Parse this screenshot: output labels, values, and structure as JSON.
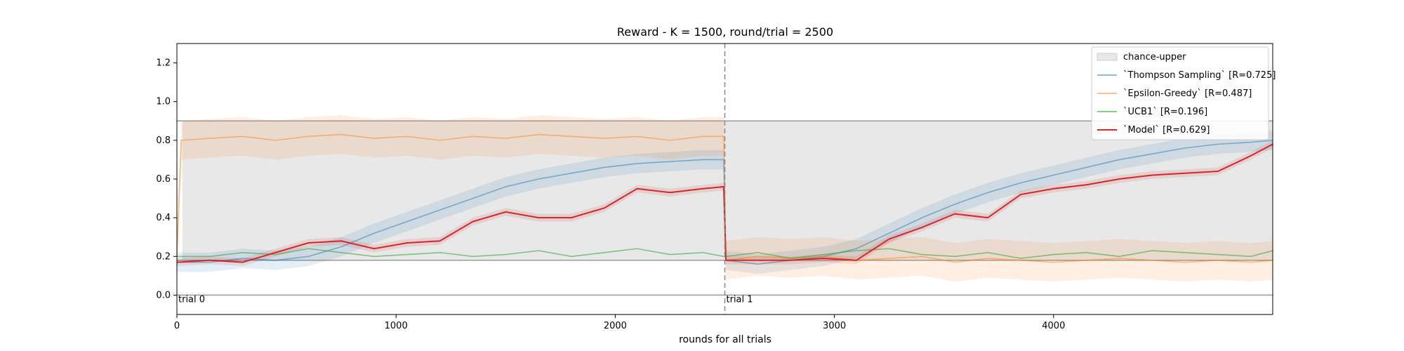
{
  "chart_data": {
    "type": "line",
    "title": "Reward - K = 1500, round/trial = 2500",
    "xlabel": "rounds for all trials",
    "ylabel": "",
    "xlim": [
      0,
      5000
    ],
    "ylim": [
      -0.1,
      1.3
    ],
    "xticks": [
      0,
      1000,
      2000,
      3000,
      4000
    ],
    "yticks": [
      0.0,
      0.2,
      0.4,
      0.6,
      0.8,
      1.0,
      1.2
    ],
    "xtick_labels": [
      "0",
      "1000",
      "2000",
      "3000",
      "4000"
    ],
    "ytick_labels": [
      "0.0",
      "0.2",
      "0.4",
      "0.6",
      "0.8",
      "1.0",
      "1.2"
    ],
    "grid": false,
    "legend_position": "top-right",
    "chance_band": {
      "label": "chance-upper",
      "lower": 0.18,
      "upper": 0.9,
      "color": "#e8e8e8"
    },
    "reference_lines": [
      0.0,
      0.18,
      0.9
    ],
    "trial_boundary_x": 2500,
    "annotations": [
      {
        "text": "trial 0",
        "x": 0,
        "y": 0.0
      },
      {
        "text": "trial 1",
        "x": 2500,
        "y": 0.0
      }
    ],
    "series": [
      {
        "name": "`Thompson Sampling` [R=0.725]",
        "color": "#1f77b4",
        "alpha": 0.5,
        "band": 0.05,
        "x": [
          0,
          150,
          300,
          450,
          600,
          750,
          900,
          1050,
          1200,
          1350,
          1500,
          1650,
          1800,
          1950,
          2100,
          2250,
          2400,
          2495,
          2505,
          2650,
          2800,
          2950,
          3100,
          3250,
          3400,
          3550,
          3700,
          3850,
          4000,
          4150,
          4300,
          4450,
          4600,
          4750,
          4900,
          5000
        ],
        "y": [
          0.17,
          0.17,
          0.19,
          0.18,
          0.2,
          0.25,
          0.32,
          0.38,
          0.44,
          0.5,
          0.56,
          0.6,
          0.63,
          0.66,
          0.68,
          0.69,
          0.7,
          0.7,
          0.18,
          0.16,
          0.18,
          0.2,
          0.24,
          0.32,
          0.4,
          0.47,
          0.53,
          0.58,
          0.62,
          0.66,
          0.7,
          0.73,
          0.76,
          0.78,
          0.79,
          0.8
        ]
      },
      {
        "name": "`Epsilon-Greedy` [R=0.487]",
        "color": "#ff7f0e",
        "alpha": 0.5,
        "band": 0.1,
        "x": [
          0,
          20,
          150,
          300,
          450,
          600,
          750,
          900,
          1050,
          1200,
          1350,
          1500,
          1650,
          1800,
          1950,
          2100,
          2250,
          2400,
          2495,
          2505,
          2650,
          2800,
          2950,
          3100,
          3250,
          3400,
          3550,
          3700,
          3850,
          4000,
          4150,
          4300,
          4450,
          4600,
          4750,
          4900,
          5000
        ],
        "y": [
          0.2,
          0.8,
          0.81,
          0.82,
          0.8,
          0.82,
          0.83,
          0.81,
          0.82,
          0.8,
          0.82,
          0.81,
          0.83,
          0.82,
          0.81,
          0.82,
          0.8,
          0.82,
          0.82,
          0.18,
          0.2,
          0.19,
          0.2,
          0.18,
          0.19,
          0.2,
          0.17,
          0.19,
          0.18,
          0.17,
          0.18,
          0.19,
          0.18,
          0.17,
          0.18,
          0.17,
          0.18
        ]
      },
      {
        "name": "`UCB1` [R=0.196]",
        "color": "#2ca02c",
        "alpha": 0.55,
        "band": 0.0,
        "x": [
          0,
          150,
          300,
          450,
          600,
          750,
          900,
          1050,
          1200,
          1350,
          1500,
          1650,
          1800,
          1950,
          2100,
          2250,
          2400,
          2495,
          2505,
          2650,
          2800,
          2950,
          3100,
          3250,
          3400,
          3550,
          3700,
          3850,
          4000,
          4150,
          4300,
          4450,
          4600,
          4750,
          4900,
          5000
        ],
        "y": [
          0.2,
          0.2,
          0.22,
          0.21,
          0.24,
          0.22,
          0.2,
          0.21,
          0.22,
          0.2,
          0.21,
          0.23,
          0.2,
          0.22,
          0.24,
          0.21,
          0.22,
          0.2,
          0.2,
          0.22,
          0.19,
          0.21,
          0.23,
          0.24,
          0.21,
          0.2,
          0.22,
          0.19,
          0.21,
          0.22,
          0.2,
          0.23,
          0.22,
          0.21,
          0.2,
          0.23
        ]
      },
      {
        "name": "`Model` [R=0.629]",
        "color": "#d62728",
        "alpha": 1.0,
        "band": 0.02,
        "x": [
          0,
          150,
          300,
          450,
          600,
          750,
          900,
          1050,
          1200,
          1350,
          1500,
          1650,
          1800,
          1950,
          2100,
          2250,
          2400,
          2495,
          2505,
          2650,
          2800,
          2950,
          3100,
          3250,
          3400,
          3550,
          3700,
          3850,
          4000,
          4150,
          4300,
          4450,
          4600,
          4750,
          4900,
          5000
        ],
        "y": [
          0.17,
          0.18,
          0.17,
          0.22,
          0.27,
          0.28,
          0.24,
          0.27,
          0.28,
          0.38,
          0.43,
          0.4,
          0.4,
          0.45,
          0.55,
          0.53,
          0.55,
          0.56,
          0.18,
          0.18,
          0.18,
          0.19,
          0.18,
          0.29,
          0.35,
          0.42,
          0.4,
          0.52,
          0.55,
          0.57,
          0.6,
          0.62,
          0.63,
          0.64,
          0.72,
          0.78
        ]
      }
    ]
  }
}
